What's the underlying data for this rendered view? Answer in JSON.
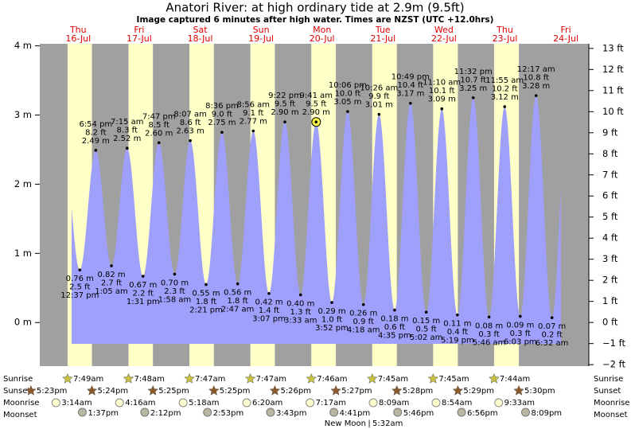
{
  "chart_data": {
    "type": "area",
    "title": "Anatori River: at high  ordinary tide at 2.9m (9.5ft)",
    "subtitle": "Image captured 6 minutes after high water. Times are NZST (UTC +12.0hrs)",
    "days": [
      {
        "weekday": "Thu",
        "date": "16-Jul"
      },
      {
        "weekday": "Fri",
        "date": "17-Jul"
      },
      {
        "weekday": "Sat",
        "date": "18-Jul"
      },
      {
        "weekday": "Sun",
        "date": "19-Jul"
      },
      {
        "weekday": "Mon",
        "date": "20-Jul"
      },
      {
        "weekday": "Tue",
        "date": "21-Jul"
      },
      {
        "weekday": "Wed",
        "date": "22-Jul"
      },
      {
        "weekday": "Thu",
        "date": "23-Jul"
      },
      {
        "weekday": "Fri",
        "date": "24-Jul"
      }
    ],
    "ylim": [
      -0.63,
      4.03
    ],
    "yticks": [
      {
        "value": 0,
        "label": "0 m"
      },
      {
        "value": 1,
        "label": "1 m"
      },
      {
        "value": 2,
        "label": "2 m"
      },
      {
        "value": 3,
        "label": "3 m"
      },
      {
        "value": 4,
        "label": "4 m"
      }
    ],
    "y2lim": [
      -2.07,
      13.22
    ],
    "y2ticks": [
      {
        "value": -2,
        "label": "−2 ft"
      },
      {
        "value": -1,
        "label": "−1 ft"
      },
      {
        "value": 0,
        "label": "0 ft"
      },
      {
        "value": 1,
        "label": "1 ft"
      },
      {
        "value": 2,
        "label": "2 ft"
      },
      {
        "value": 3,
        "label": "3 ft"
      },
      {
        "value": 4,
        "label": "4 ft"
      },
      {
        "value": 5,
        "label": "5 ft"
      },
      {
        "value": 6,
        "label": "6 ft"
      },
      {
        "value": 7,
        "label": "7 ft"
      },
      {
        "value": 8,
        "label": "8 ft"
      },
      {
        "value": 9,
        "label": "9 ft"
      },
      {
        "value": 10,
        "label": "10 ft"
      },
      {
        "value": 11,
        "label": "11 ft"
      },
      {
        "value": 12,
        "label": "12 ft"
      },
      {
        "value": 13,
        "label": "13 ft"
      }
    ],
    "tides": {
      "times": [
        "12:37 pm",
        "6:54 pm",
        "1:05 am",
        "7:15 am",
        "1:31 pm",
        "7:47 pm",
        "1:58 am",
        "8:07 am",
        "2:21 pm",
        "8:36 pm",
        "2:47 am",
        "8:56 am",
        "3:07 pm",
        "9:22 pm",
        "3:33 am",
        "9:41 am",
        "3:52 pm",
        "10:06 pm",
        "4:18 am",
        "10:26 am",
        "4:35 pm",
        "10:49 pm",
        "5:02 am",
        "11:10 am",
        "5:19 pm",
        "11:32 pm",
        "5:46 am",
        "11:55 am",
        "6:03 pm",
        "12:17 am",
        "6:32 am"
      ],
      "values": [
        0.76,
        2.49,
        0.82,
        2.52,
        0.67,
        2.6,
        0.7,
        2.63,
        0.55,
        2.75,
        0.56,
        2.77,
        0.42,
        2.9,
        0.4,
        2.9,
        0.29,
        3.05,
        0.26,
        3.01,
        0.18,
        3.17,
        0.15,
        3.09,
        0.11,
        3.25,
        0.08,
        3.12,
        0.09,
        3.28,
        0.07
      ],
      "value_labels": [
        "0.76 m",
        "2.49 m",
        "0.82 m",
        "2.52 m",
        "0.67 m",
        "2.60 m",
        "0.70 m",
        "2.63 m",
        "0.55 m",
        "2.75 m",
        "0.56 m",
        "2.77 m",
        "0.42 m",
        "2.90 m",
        "0.40 m",
        "2.90 m",
        "0.29 m",
        "3.05 m",
        "0.26 m",
        "3.01 m",
        "0.18 m",
        "3.17 m",
        "0.15 m",
        "3.09 m",
        "0.11 m",
        "3.25 m",
        "0.08 m",
        "3.12 m",
        "0.09 m",
        "3.28 m",
        "0.07 m"
      ],
      "ft_values": [
        2.5,
        8.2,
        2.7,
        8.3,
        2.2,
        8.5,
        2.3,
        8.6,
        1.8,
        9.0,
        1.8,
        9.1,
        1.4,
        9.5,
        1.3,
        9.5,
        1.0,
        10.0,
        0.9,
        9.9,
        0.6,
        10.4,
        0.5,
        10.1,
        0.4,
        10.7,
        0.3,
        10.2,
        0.3,
        10.8,
        0.2
      ],
      "ft_labels": [
        "2.5 ft",
        "8.2 ft",
        "2.7 ft",
        "8.3 ft",
        "2.2 ft",
        "8.5 ft",
        "2.3 ft",
        "8.6 ft",
        "1.8 ft",
        "9.0 ft",
        "1.8 ft",
        "9.1 ft",
        "1.4 ft",
        "9.5 ft",
        "1.3 ft",
        "9.5 ft",
        "1.0 ft",
        "10.0 ft",
        "0.9 ft",
        "9.9 ft",
        "0.6 ft",
        "10.4 ft",
        "0.5 ft",
        "10.1 ft",
        "0.4 ft",
        "10.7 ft",
        "0.3 ft",
        "10.2 ft",
        "0.3 ft",
        "10.8 ft",
        "0.2 ft"
      ],
      "marker_index": 15
    },
    "colors": {
      "day": "#ffffc8",
      "night": "#a0a0a0",
      "water": "#9f9ffc"
    }
  },
  "almanac": {
    "labels": {
      "sunrise": "Sunrise",
      "sunset": "Sunset",
      "moonrise": "Moonrise",
      "moonset": "Moonset"
    },
    "sunrise": [
      "7:49am",
      "7:48am",
      "7:47am",
      "7:47am",
      "7:46am",
      "7:45am",
      "7:45am",
      "7:44am"
    ],
    "sunset": [
      "5:23pm",
      "5:24pm",
      "5:25pm",
      "5:25pm",
      "5:26pm",
      "5:27pm",
      "5:28pm",
      "5:29pm",
      "5:30pm"
    ],
    "moonrise": [
      "3:14am",
      "4:16am",
      "5:18am",
      "6:20am",
      "7:17am",
      "8:09am",
      "8:54am",
      "9:33am"
    ],
    "moonset": [
      "1:37pm",
      "2:12pm",
      "2:53pm",
      "3:43pm",
      "4:41pm",
      "5:46pm",
      "6:56pm",
      "8:09pm"
    ],
    "new_moon": {
      "label": "New Moon",
      "time": "5:32am"
    }
  }
}
